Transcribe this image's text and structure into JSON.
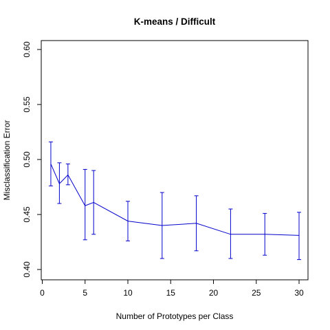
{
  "chart_data": {
    "type": "line",
    "title": "K-means / Difficult",
    "xlabel": "Number of Prototypes per Class",
    "ylabel": "Misclassification Error",
    "xlim": [
      0,
      30
    ],
    "ylim": [
      0.4,
      0.6
    ],
    "x_ticks": [
      0,
      5,
      10,
      15,
      20,
      25,
      30
    ],
    "y_ticks": [
      0.4,
      0.45,
      0.5,
      0.55,
      0.6
    ],
    "x_tick_labels": [
      "0",
      "5",
      "10",
      "15",
      "20",
      "25",
      "30"
    ],
    "y_tick_labels": [
      "0.40",
      "0.45",
      "0.50",
      "0.55",
      "0.60"
    ],
    "grid": false,
    "series": [
      {
        "color": "#0000cc",
        "x": [
          1,
          2,
          3,
          5,
          6,
          10,
          14,
          18,
          22,
          26,
          30
        ],
        "y": [
          0.496,
          0.478,
          0.486,
          0.458,
          0.461,
          0.444,
          0.44,
          0.442,
          0.432,
          0.432,
          0.431
        ],
        "err_low": [
          0.476,
          0.46,
          0.477,
          0.427,
          0.432,
          0.426,
          0.41,
          0.417,
          0.41,
          0.413,
          0.409
        ],
        "err_high": [
          0.516,
          0.497,
          0.496,
          0.491,
          0.49,
          0.462,
          0.47,
          0.467,
          0.455,
          0.451,
          0.452
        ]
      }
    ]
  }
}
